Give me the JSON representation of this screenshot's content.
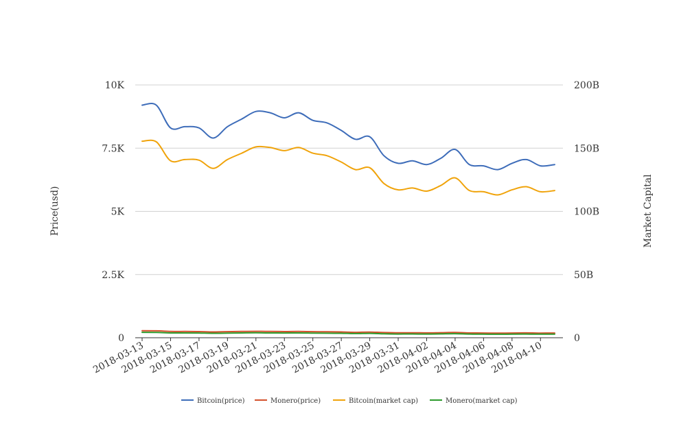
{
  "chart_data": {
    "type": "line",
    "title": "",
    "ylabel_left": "Price(usd)",
    "ylabel_right": "Market Capital",
    "ylim_left": [
      0,
      10000
    ],
    "ylim_right": [
      0,
      200000000000
    ],
    "yticks_left": [
      "0",
      "2.5K",
      "5K",
      "7.5K",
      "10K"
    ],
    "yticks_right": [
      "0",
      "50B",
      "100B",
      "150B",
      "200B"
    ],
    "grid": true,
    "legend_position": "bottom",
    "x_tick_labels": [
      "2018-03-13",
      "2018-03-15",
      "2018-03-17",
      "2018-03-19",
      "2018-03-21",
      "2018-03-23",
      "2018-03-25",
      "2018-03-27",
      "2018-03-29",
      "2018-03-31",
      "2018-04-02",
      "2018-04-04",
      "2018-04-06",
      "2018-04-08",
      "2018-04-10"
    ],
    "x": [
      "2018-03-13",
      "2018-03-14",
      "2018-03-15",
      "2018-03-16",
      "2018-03-17",
      "2018-03-18",
      "2018-03-19",
      "2018-03-20",
      "2018-03-21",
      "2018-03-22",
      "2018-03-23",
      "2018-03-24",
      "2018-03-25",
      "2018-03-26",
      "2018-03-27",
      "2018-03-28",
      "2018-03-29",
      "2018-03-30",
      "2018-03-31",
      "2018-04-01",
      "2018-04-02",
      "2018-04-03",
      "2018-04-04",
      "2018-04-05",
      "2018-04-06",
      "2018-04-07",
      "2018-04-08",
      "2018-04-09",
      "2018-04-10",
      "2018-04-11"
    ],
    "series": [
      {
        "name": "Bitcoin(price)",
        "axis": "left",
        "color": "#3d6cb9",
        "values": [
          9200,
          9200,
          8300,
          8350,
          8300,
          7900,
          8350,
          8650,
          8950,
          8900,
          8700,
          8900,
          8600,
          8500,
          8200,
          7850,
          7950,
          7200,
          6900,
          7000,
          6850,
          7100,
          7450,
          6850,
          6800,
          6650,
          6900,
          7050,
          6800,
          6850
        ]
      },
      {
        "name": "Monero(price)",
        "axis": "left",
        "color": "#d4502b",
        "values": [
          280,
          275,
          250,
          248,
          245,
          230,
          240,
          250,
          255,
          250,
          245,
          248,
          240,
          238,
          230,
          215,
          225,
          205,
          195,
          198,
          192,
          200,
          210,
          190,
          188,
          182,
          188,
          192,
          185,
          188
        ]
      },
      {
        "name": "Bitcoin(market cap)",
        "axis": "right",
        "color": "#f0a30a",
        "values": [
          155500000000,
          155000000000,
          140000000000,
          141000000000,
          140500000000,
          134000000000,
          141000000000,
          146000000000,
          151000000000,
          150500000000,
          148000000000,
          150500000000,
          146000000000,
          144000000000,
          139000000000,
          133000000000,
          134500000000,
          122000000000,
          117000000000,
          118500000000,
          116000000000,
          120500000000,
          126500000000,
          116500000000,
          115500000000,
          113000000000,
          117000000000,
          119500000000,
          115500000000,
          116500000000
        ]
      },
      {
        "name": "Monero(market cap)",
        "axis": "right",
        "color": "#2b9a2b",
        "values": [
          4300000000,
          4200000000,
          3800000000,
          3800000000,
          3750000000,
          3500000000,
          3650000000,
          3800000000,
          3900000000,
          3800000000,
          3750000000,
          3800000000,
          3650000000,
          3600000000,
          3500000000,
          3300000000,
          3450000000,
          3100000000,
          2950000000,
          3000000000,
          2900000000,
          3050000000,
          3200000000,
          2900000000,
          2850000000,
          2750000000,
          2850000000,
          2900000000,
          2800000000,
          2850000000
        ]
      }
    ]
  }
}
